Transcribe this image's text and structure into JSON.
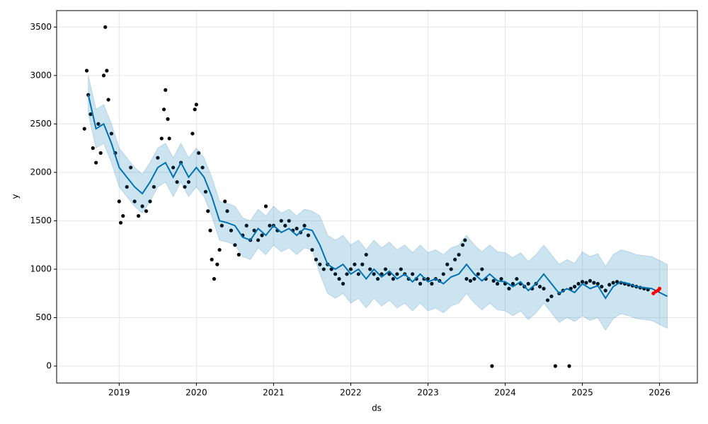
{
  "chart_data": {
    "type": "line",
    "x_label": "ds",
    "y_label": "y",
    "xlim": [
      2018.19,
      2026.49
    ],
    "ylim": [
      -175,
      3670
    ],
    "xticks": [
      2019,
      2020,
      2021,
      2022,
      2023,
      2024,
      2025,
      2026
    ],
    "yticks": [
      0,
      500,
      1000,
      1500,
      2000,
      2500,
      3000,
      3500
    ],
    "grid": true,
    "series": [
      {
        "kind": "points",
        "color": "#000000",
        "x": [
          2018.55,
          2018.58,
          2018.6,
          2018.63,
          2018.66,
          2018.7,
          2018.73,
          2018.76,
          2018.8,
          2018.82,
          2018.84,
          2018.86,
          2018.9,
          2018.95,
          2019.0,
          2019.02,
          2019.05,
          2019.1,
          2019.15,
          2019.2,
          2019.25,
          2019.3,
          2019.35,
          2019.4,
          2019.45,
          2019.5,
          2019.55,
          2019.58,
          2019.6,
          2019.63,
          2019.65,
          2019.7,
          2019.75,
          2019.8,
          2019.85,
          2019.9,
          2019.95,
          2019.98,
          2020.0,
          2020.03,
          2020.08,
          2020.12,
          2020.15,
          2020.18,
          2020.2,
          2020.23,
          2020.27,
          2020.3,
          2020.33,
          2020.37,
          2020.4,
          2020.45,
          2020.5,
          2020.55,
          2020.6,
          2020.65,
          2020.7,
          2020.75,
          2020.8,
          2020.85,
          2020.9,
          2020.95,
          2021.0,
          2021.05,
          2021.1,
          2021.15,
          2021.2,
          2021.25,
          2021.3,
          2021.35,
          2021.4,
          2021.45,
          2021.5,
          2021.55,
          2021.6,
          2021.65,
          2021.7,
          2021.75,
          2021.8,
          2021.85,
          2021.9,
          2021.95,
          2022.0,
          2022.05,
          2022.1,
          2022.15,
          2022.2,
          2022.25,
          2022.3,
          2022.35,
          2022.4,
          2022.45,
          2022.5,
          2022.55,
          2022.6,
          2022.65,
          2022.7,
          2022.75,
          2022.8,
          2022.85,
          2022.9,
          2022.95,
          2023.0,
          2023.05,
          2023.1,
          2023.15,
          2023.2,
          2023.25,
          2023.3,
          2023.35,
          2023.4,
          2023.45,
          2023.48,
          2023.5,
          2023.55,
          2023.6,
          2023.65,
          2023.7,
          2023.75,
          2023.83,
          2023.85,
          2023.9,
          2023.95,
          2024.0,
          2024.05,
          2024.1,
          2024.15,
          2024.2,
          2024.25,
          2024.3,
          2024.35,
          2024.4,
          2024.45,
          2024.5,
          2024.55,
          2024.6,
          2024.65,
          2024.7,
          2024.75,
          2024.83,
          2024.85,
          2024.9,
          2024.95,
          2025.0,
          2025.05,
          2025.1,
          2025.15,
          2025.2,
          2025.25,
          2025.3,
          2025.35,
          2025.4,
          2025.45,
          2025.5,
          2025.55,
          2025.6,
          2025.65,
          2025.7,
          2025.75,
          2025.8,
          2025.85
        ],
        "values": [
          2450,
          3050,
          2800,
          2600,
          2250,
          2100,
          2500,
          2200,
          3000,
          3500,
          3050,
          2750,
          2400,
          2200,
          1700,
          1480,
          1550,
          1850,
          2050,
          1700,
          1550,
          1650,
          1600,
          1700,
          1850,
          2150,
          2350,
          2650,
          2850,
          2550,
          2350,
          2050,
          1900,
          2100,
          1850,
          1900,
          2400,
          2650,
          2700,
          2200,
          2050,
          1800,
          1600,
          1400,
          1100,
          900,
          1050,
          1200,
          1450,
          1700,
          1600,
          1400,
          1250,
          1150,
          1350,
          1450,
          1300,
          1400,
          1300,
          1350,
          1650,
          1450,
          1450,
          1400,
          1500,
          1450,
          1500,
          1400,
          1420,
          1380,
          1450,
          1350,
          1200,
          1100,
          1050,
          1000,
          1050,
          1000,
          950,
          900,
          850,
          950,
          1000,
          1050,
          950,
          1050,
          1150,
          1000,
          950,
          900,
          950,
          1000,
          950,
          900,
          950,
          1000,
          950,
          900,
          950,
          900,
          850,
          900,
          900,
          850,
          900,
          880,
          950,
          1050,
          1000,
          1100,
          1150,
          1250,
          1300,
          900,
          880,
          900,
          950,
          1000,
          900,
          0,
          880,
          850,
          900,
          850,
          800,
          850,
          900,
          850,
          820,
          850,
          800,
          850,
          820,
          800,
          680,
          720,
          0,
          750,
          780,
          0,
          800,
          820,
          850,
          870,
          860,
          880,
          860,
          850,
          820,
          780,
          840,
          860,
          870,
          860,
          850,
          840,
          830,
          820,
          810,
          800,
          790
        ]
      },
      {
        "kind": "forecast",
        "color": "#0072B2",
        "band_color": "#0072B2",
        "x": [
          2018.6,
          2018.7,
          2018.8,
          2018.9,
          2019.0,
          2019.1,
          2019.2,
          2019.3,
          2019.4,
          2019.5,
          2019.6,
          2019.7,
          2019.8,
          2019.9,
          2020.0,
          2020.1,
          2020.2,
          2020.3,
          2020.4,
          2020.5,
          2020.6,
          2020.7,
          2020.8,
          2020.9,
          2021.0,
          2021.1,
          2021.2,
          2021.3,
          2021.4,
          2021.5,
          2021.6,
          2021.7,
          2021.8,
          2021.9,
          2022.0,
          2022.1,
          2022.2,
          2022.3,
          2022.4,
          2022.5,
          2022.6,
          2022.7,
          2022.8,
          2022.9,
          2023.0,
          2023.1,
          2023.2,
          2023.3,
          2023.4,
          2023.5,
          2023.6,
          2023.7,
          2023.8,
          2023.9,
          2024.0,
          2024.1,
          2024.2,
          2024.3,
          2024.4,
          2024.5,
          2024.6,
          2024.7,
          2024.8,
          2024.9,
          2025.0,
          2025.1,
          2025.2,
          2025.3,
          2025.4,
          2025.5,
          2025.6,
          2025.7,
          2025.8,
          2025.9,
          2026.0,
          2026.1
        ],
        "values": [
          2800,
          2450,
          2500,
          2300,
          2050,
          1950,
          1850,
          1780,
          1900,
          2050,
          2100,
          1950,
          2100,
          1950,
          2050,
          1950,
          1750,
          1500,
          1480,
          1450,
          1330,
          1300,
          1420,
          1350,
          1450,
          1380,
          1420,
          1350,
          1420,
          1400,
          1250,
          1050,
          1000,
          1050,
          950,
          1000,
          900,
          1000,
          920,
          980,
          900,
          950,
          870,
          950,
          870,
          900,
          850,
          920,
          950,
          1050,
          950,
          880,
          950,
          880,
          870,
          820,
          870,
          780,
          850,
          950,
          850,
          750,
          800,
          760,
          850,
          800,
          830,
          700,
          820,
          870,
          850,
          820,
          810,
          800,
          760,
          720
        ],
        "lower": [
          2600,
          2250,
          2300,
          2100,
          1850,
          1750,
          1650,
          1580,
          1700,
          1850,
          1900,
          1750,
          1900,
          1750,
          1850,
          1750,
          1550,
          1300,
          1280,
          1250,
          1130,
          1100,
          1220,
          1150,
          1250,
          1180,
          1220,
          1150,
          1220,
          1200,
          950,
          750,
          700,
          750,
          650,
          700,
          600,
          700,
          620,
          680,
          600,
          650,
          570,
          650,
          570,
          600,
          550,
          620,
          650,
          750,
          650,
          580,
          650,
          580,
          570,
          520,
          570,
          480,
          550,
          650,
          550,
          450,
          500,
          460,
          520,
          470,
          500,
          370,
          490,
          540,
          520,
          490,
          480,
          470,
          430,
          390
        ],
        "upper": [
          3000,
          2650,
          2700,
          2500,
          2250,
          2150,
          2050,
          1980,
          2100,
          2250,
          2300,
          2150,
          2300,
          2150,
          2250,
          2150,
          1950,
          1700,
          1680,
          1650,
          1530,
          1500,
          1620,
          1550,
          1650,
          1580,
          1620,
          1550,
          1620,
          1600,
          1550,
          1350,
          1300,
          1350,
          1250,
          1300,
          1200,
          1300,
          1220,
          1280,
          1200,
          1250,
          1170,
          1250,
          1170,
          1200,
          1150,
          1220,
          1250,
          1350,
          1250,
          1180,
          1250,
          1180,
          1170,
          1120,
          1170,
          1080,
          1150,
          1250,
          1150,
          1050,
          1100,
          1060,
          1180,
          1130,
          1160,
          1030,
          1150,
          1200,
          1180,
          1150,
          1140,
          1130,
          1090,
          1050
        ]
      },
      {
        "kind": "points",
        "color": "#ff0000",
        "x": [
          2025.92,
          2025.95,
          2025.98,
          2026.0
        ],
        "values": [
          750,
          770,
          780,
          800
        ]
      }
    ]
  }
}
